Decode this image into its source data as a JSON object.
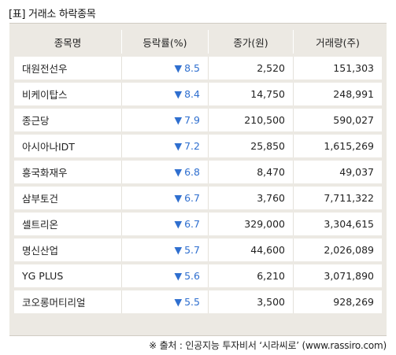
{
  "title": "[표] 거래소 하락종목",
  "headers": [
    "종목명",
    "등락률(%)",
    "종가(원)",
    "거래량(주)"
  ],
  "down_arrow": "▼",
  "rows": [
    {
      "name": "대원전선우",
      "rate": "8.5",
      "close": "2,520",
      "volume": "151,303"
    },
    {
      "name": "비케이탑스",
      "rate": "8.4",
      "close": "14,750",
      "volume": "248,991"
    },
    {
      "name": "종근당",
      "rate": "7.9",
      "close": "210,500",
      "volume": "590,027"
    },
    {
      "name": "아시아나IDT",
      "rate": "7.2",
      "close": "25,850",
      "volume": "1,615,269"
    },
    {
      "name": "흥국화재우",
      "rate": "6.8",
      "close": "8,470",
      "volume": "49,037"
    },
    {
      "name": "삼부토건",
      "rate": "6.7",
      "close": "3,760",
      "volume": "7,711,322"
    },
    {
      "name": "셀트리온",
      "rate": "6.7",
      "close": "329,000",
      "volume": "3,304,615"
    },
    {
      "name": "명신산업",
      "rate": "5.7",
      "close": "44,600",
      "volume": "2,026,089"
    },
    {
      "name": "YG PLUS",
      "rate": "5.6",
      "close": "6,210",
      "volume": "3,071,890"
    },
    {
      "name": "코오롱머티리얼",
      "rate": "5.5",
      "close": "3,500",
      "volume": "928,269"
    }
  ],
  "source": "※ 출처 : 인공지능 투자비서 ‘시라씨로’ (www.rassiro.com)",
  "colors": {
    "down": "#2f6fcf",
    "frame": "#ece9e3"
  }
}
